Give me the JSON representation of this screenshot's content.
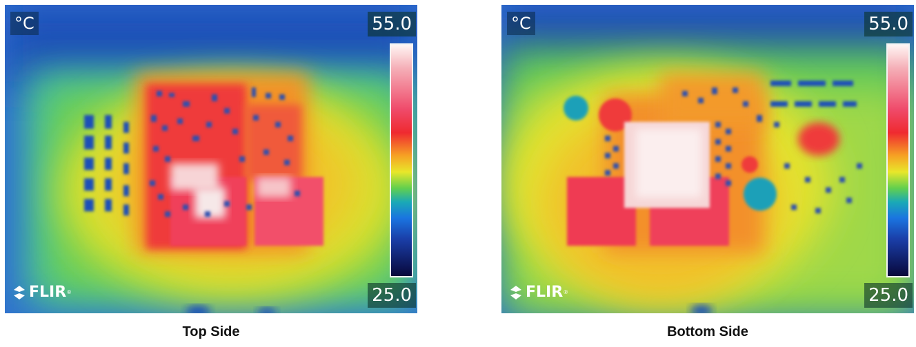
{
  "images": [
    {
      "unit": "°C",
      "scale_max": "55.0",
      "scale_min": "25.0",
      "logo": "FLIR",
      "caption": "Top Side"
    },
    {
      "unit": "°C",
      "scale_max": "55.0",
      "scale_min": "25.0",
      "logo": "FLIR",
      "caption": "Bottom Side"
    }
  ],
  "colors": {
    "cold": "#08083a",
    "blue": "#1a74e0",
    "green": "#62cf4e",
    "yellow": "#e8e72a",
    "orange": "#f6a224",
    "red": "#ef2a30",
    "hot": "#fff6f4"
  }
}
